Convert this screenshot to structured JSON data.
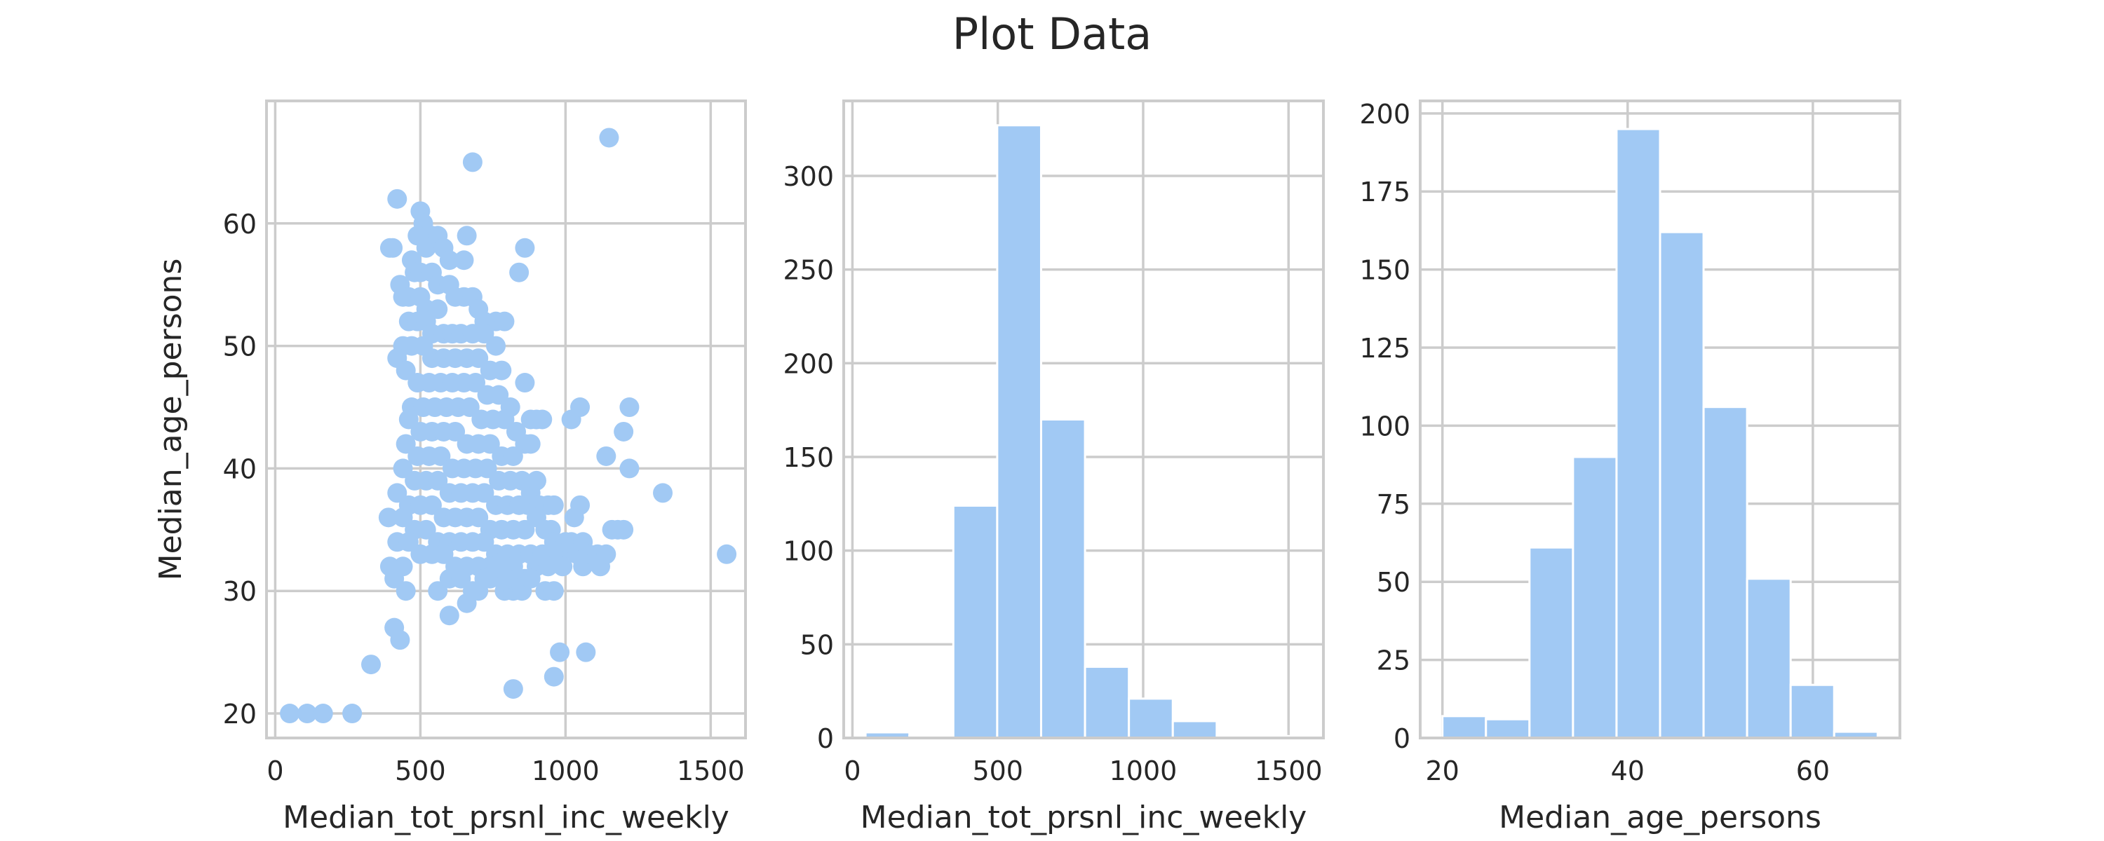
{
  "title": "Plot Data",
  "colors": {
    "marker": "#a1c9f4",
    "grid": "#cccccc",
    "text": "#262626"
  },
  "chart_data": [
    {
      "type": "scatter",
      "xlabel": "Median_tot_prsnl_inc_weekly",
      "ylabel": "Median_age_persons",
      "xlim": [
        -30,
        1620
      ],
      "ylim": [
        18,
        70
      ],
      "xticks": [
        0,
        500,
        1000,
        1500
      ],
      "yticks": [
        20,
        30,
        40,
        50,
        60
      ],
      "grid": true,
      "points": [
        [
          50,
          20
        ],
        [
          110,
          20
        ],
        [
          165,
          20
        ],
        [
          265,
          20
        ],
        [
          330,
          24
        ],
        [
          390,
          36
        ],
        [
          395,
          58
        ],
        [
          405,
          58
        ],
        [
          420,
          62
        ],
        [
          395,
          32
        ],
        [
          410,
          31
        ],
        [
          410,
          27
        ],
        [
          430,
          26
        ],
        [
          450,
          30
        ],
        [
          440,
          32
        ],
        [
          1150,
          67
        ],
        [
          680,
          65
        ],
        [
          500,
          61
        ],
        [
          510,
          60
        ],
        [
          490,
          59
        ],
        [
          520,
          58
        ],
        [
          540,
          59
        ],
        [
          560,
          59
        ],
        [
          580,
          58
        ],
        [
          600,
          57
        ],
        [
          660,
          59
        ],
        [
          650,
          57
        ],
        [
          860,
          58
        ],
        [
          840,
          56
        ],
        [
          470,
          57
        ],
        [
          480,
          56
        ],
        [
          500,
          56
        ],
        [
          540,
          56
        ],
        [
          560,
          55
        ],
        [
          600,
          55
        ],
        [
          430,
          55
        ],
        [
          440,
          54
        ],
        [
          460,
          54
        ],
        [
          500,
          54
        ],
        [
          520,
          53
        ],
        [
          560,
          53
        ],
        [
          620,
          54
        ],
        [
          650,
          54
        ],
        [
          680,
          54
        ],
        [
          700,
          53
        ],
        [
          720,
          52
        ],
        [
          760,
          52
        ],
        [
          790,
          52
        ],
        [
          460,
          52
        ],
        [
          490,
          52
        ],
        [
          520,
          52
        ],
        [
          540,
          51
        ],
        [
          580,
          51
        ],
        [
          610,
          51
        ],
        [
          640,
          51
        ],
        [
          680,
          51
        ],
        [
          720,
          51
        ],
        [
          760,
          50
        ],
        [
          440,
          50
        ],
        [
          470,
          50
        ],
        [
          510,
          50
        ],
        [
          540,
          49
        ],
        [
          580,
          49
        ],
        [
          620,
          49
        ],
        [
          660,
          49
        ],
        [
          700,
          49
        ],
        [
          740,
          48
        ],
        [
          780,
          48
        ],
        [
          420,
          49
        ],
        [
          450,
          48
        ],
        [
          490,
          47
        ],
        [
          530,
          47
        ],
        [
          570,
          47
        ],
        [
          610,
          47
        ],
        [
          650,
          47
        ],
        [
          690,
          47
        ],
        [
          730,
          46
        ],
        [
          770,
          46
        ],
        [
          810,
          45
        ],
        [
          860,
          47
        ],
        [
          880,
          44
        ],
        [
          900,
          44
        ],
        [
          920,
          44
        ],
        [
          470,
          45
        ],
        [
          510,
          45
        ],
        [
          550,
          45
        ],
        [
          590,
          45
        ],
        [
          630,
          45
        ],
        [
          670,
          45
        ],
        [
          710,
          44
        ],
        [
          750,
          44
        ],
        [
          790,
          44
        ],
        [
          830,
          43
        ],
        [
          460,
          44
        ],
        [
          500,
          43
        ],
        [
          540,
          43
        ],
        [
          580,
          43
        ],
        [
          620,
          43
        ],
        [
          660,
          42
        ],
        [
          700,
          42
        ],
        [
          740,
          42
        ],
        [
          780,
          41
        ],
        [
          820,
          41
        ],
        [
          860,
          42
        ],
        [
          880,
          42
        ],
        [
          450,
          42
        ],
        [
          490,
          41
        ],
        [
          530,
          41
        ],
        [
          570,
          41
        ],
        [
          610,
          40
        ],
        [
          650,
          40
        ],
        [
          690,
          40
        ],
        [
          730,
          40
        ],
        [
          770,
          39
        ],
        [
          810,
          39
        ],
        [
          850,
          39
        ],
        [
          880,
          38
        ],
        [
          900,
          39
        ],
        [
          440,
          40
        ],
        [
          480,
          39
        ],
        [
          520,
          39
        ],
        [
          560,
          39
        ],
        [
          600,
          38
        ],
        [
          640,
          38
        ],
        [
          680,
          38
        ],
        [
          720,
          38
        ],
        [
          760,
          37
        ],
        [
          800,
          37
        ],
        [
          840,
          37
        ],
        [
          870,
          37
        ],
        [
          910,
          37
        ],
        [
          940,
          37
        ],
        [
          960,
          37
        ],
        [
          420,
          38
        ],
        [
          460,
          37
        ],
        [
          500,
          37
        ],
        [
          540,
          37
        ],
        [
          580,
          36
        ],
        [
          620,
          36
        ],
        [
          660,
          36
        ],
        [
          700,
          36
        ],
        [
          740,
          35
        ],
        [
          780,
          35
        ],
        [
          820,
          35
        ],
        [
          860,
          35
        ],
        [
          900,
          36
        ],
        [
          930,
          35
        ],
        [
          950,
          35
        ],
        [
          440,
          36
        ],
        [
          480,
          35
        ],
        [
          520,
          35
        ],
        [
          560,
          34
        ],
        [
          600,
          34
        ],
        [
          640,
          34
        ],
        [
          680,
          34
        ],
        [
          720,
          34
        ],
        [
          760,
          33
        ],
        [
          800,
          33
        ],
        [
          840,
          33
        ],
        [
          880,
          33
        ],
        [
          920,
          33
        ],
        [
          960,
          34
        ],
        [
          980,
          33
        ],
        [
          1000,
          34
        ],
        [
          1020,
          34
        ],
        [
          1040,
          33
        ],
        [
          1060,
          34
        ],
        [
          420,
          34
        ],
        [
          460,
          34
        ],
        [
          500,
          33
        ],
        [
          540,
          33
        ],
        [
          580,
          33
        ],
        [
          620,
          32
        ],
        [
          660,
          32
        ],
        [
          700,
          32
        ],
        [
          740,
          32
        ],
        [
          780,
          31
        ],
        [
          820,
          32
        ],
        [
          860,
          31
        ],
        [
          900,
          32
        ],
        [
          940,
          32
        ],
        [
          990,
          32
        ],
        [
          1060,
          32
        ],
        [
          1080,
          33
        ],
        [
          1110,
          33
        ],
        [
          1120,
          32
        ],
        [
          1140,
          33
        ],
        [
          1160,
          35
        ],
        [
          1180,
          35
        ],
        [
          1200,
          35
        ],
        [
          1050,
          37
        ],
        [
          1030,
          36
        ],
        [
          1020,
          44
        ],
        [
          1050,
          45
        ],
        [
          1140,
          41
        ],
        [
          1200,
          43
        ],
        [
          1220,
          40
        ],
        [
          1220,
          45
        ],
        [
          1335,
          38
        ],
        [
          1555,
          33
        ],
        [
          560,
          30
        ],
        [
          600,
          28
        ],
        [
          660,
          29
        ],
        [
          700,
          30
        ],
        [
          740,
          31
        ],
        [
          790,
          30
        ],
        [
          820,
          30
        ],
        [
          850,
          30
        ],
        [
          880,
          31
        ],
        [
          930,
          30
        ],
        [
          960,
          30
        ],
        [
          980,
          25
        ],
        [
          1070,
          25
        ],
        [
          960,
          23
        ],
        [
          820,
          22
        ],
        [
          600,
          31
        ],
        [
          640,
          31
        ],
        [
          680,
          30
        ],
        [
          720,
          31
        ],
        [
          760,
          32
        ],
        [
          800,
          31
        ]
      ]
    },
    {
      "type": "bar",
      "xlabel": "Median_tot_prsnl_inc_weekly",
      "xlim": [
        -30,
        1620
      ],
      "ylim": [
        0,
        340
      ],
      "xticks": [
        0,
        500,
        1000,
        1500
      ],
      "yticks": [
        0,
        50,
        100,
        150,
        200,
        250,
        300
      ],
      "grid": true,
      "bin_edges": [
        45,
        196,
        347,
        498,
        649,
        800,
        951,
        1102,
        1253,
        1404,
        1555
      ],
      "values": [
        3,
        1,
        124,
        327,
        170,
        38,
        21,
        9,
        0,
        1
      ]
    },
    {
      "type": "bar",
      "xlabel": "Median_age_persons",
      "xlim": [
        17.6,
        69.4
      ],
      "ylim": [
        0,
        204
      ],
      "xticks": [
        20,
        40,
        60
      ],
      "yticks": [
        0,
        25,
        50,
        75,
        100,
        125,
        150,
        175,
        200
      ],
      "grid": true,
      "bin_edges": [
        20,
        24.7,
        29.4,
        34.1,
        38.8,
        43.5,
        48.2,
        52.9,
        57.6,
        62.3,
        67
      ],
      "values": [
        7,
        6,
        61,
        90,
        195,
        162,
        106,
        51,
        17,
        2
      ]
    }
  ]
}
